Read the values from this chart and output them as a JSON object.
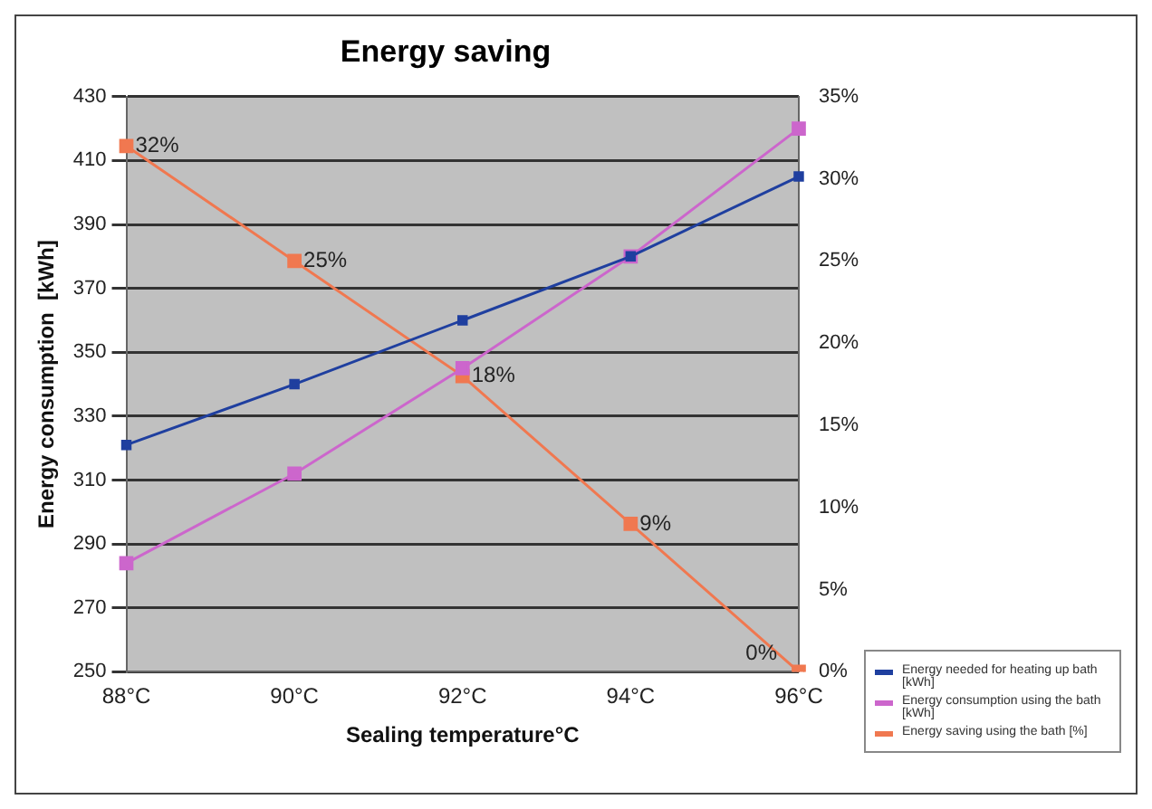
{
  "chart_data": {
    "type": "line",
    "title": "Energy saving",
    "xlabel": "Sealing temperature°C",
    "ylabel": "Energy consumption  [kWh]",
    "categories": [
      "88°C",
      "90°C",
      "92°C",
      "94°C",
      "96°C"
    ],
    "series": [
      {
        "name": "Energy needed for heating up bath [kWh]",
        "color": "#1f3f9f",
        "values": [
          321,
          340,
          360,
          380,
          405
        ]
      },
      {
        "name": "Energy consumption using the bath [kWh]",
        "color": "#cc66cc",
        "values": [
          284,
          312,
          345,
          380,
          420
        ]
      },
      {
        "name": "Energy saving using the bath [%]",
        "color": "#f07850",
        "axis": "y2",
        "values": [
          32,
          25,
          18,
          9,
          0
        ],
        "value_labels": [
          "32%",
          "25%",
          "18%",
          "9%",
          "0%"
        ]
      }
    ],
    "ylim": [
      250,
      430
    ],
    "yticks": [
      250,
      270,
      290,
      310,
      330,
      350,
      370,
      390,
      410,
      430
    ],
    "y2lim": [
      0,
      35
    ],
    "y2ticks": [
      {
        "value": 0,
        "label": "0%"
      },
      {
        "value": 5,
        "label": "5%"
      },
      {
        "value": 10,
        "label": "10%"
      },
      {
        "value": 15,
        "label": "15%"
      },
      {
        "value": 20,
        "label": "20%"
      },
      {
        "value": 25,
        "label": "25%"
      },
      {
        "value": 30,
        "label": "30%"
      },
      {
        "value": 35,
        "label": "35%"
      }
    ],
    "grid": "y",
    "legend": "bottom right",
    "marker": "square",
    "line_style": "solid"
  }
}
